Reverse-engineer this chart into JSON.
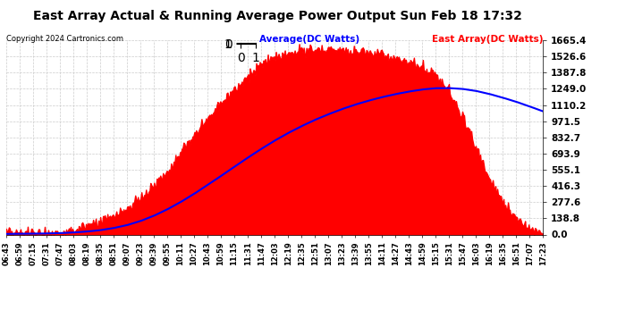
{
  "title": "East Array Actual & Running Average Power Output Sun Feb 18 17:32",
  "copyright": "Copyright 2024 Cartronics.com",
  "legend_avg": "Average(DC Watts)",
  "legend_east": "East Array(DC Watts)",
  "ymax": 1665.4,
  "ymin": 0.0,
  "yticks": [
    0.0,
    138.8,
    277.6,
    416.3,
    555.1,
    693.9,
    832.7,
    971.5,
    1110.2,
    1249.0,
    1387.8,
    1526.6,
    1665.4
  ],
  "x_labels": [
    "06:43",
    "06:59",
    "07:15",
    "07:31",
    "07:47",
    "08:03",
    "08:19",
    "08:35",
    "08:51",
    "09:07",
    "09:23",
    "09:39",
    "09:55",
    "10:11",
    "10:27",
    "10:43",
    "10:59",
    "11:15",
    "11:31",
    "11:47",
    "12:03",
    "12:19",
    "12:35",
    "12:51",
    "13:07",
    "13:23",
    "13:39",
    "13:55",
    "14:11",
    "14:27",
    "14:43",
    "14:59",
    "15:15",
    "15:31",
    "15:47",
    "16:03",
    "16:19",
    "16:35",
    "16:51",
    "17:07",
    "17:23"
  ],
  "background_color": "#ffffff",
  "fill_color": "#ff0000",
  "line_color": "#0000ff",
  "grid_color": "#cccccc",
  "title_color": "#000000",
  "legend_avg_color": "#0000ff",
  "legend_east_color": "#ff0000",
  "east_profile": [
    5,
    8,
    12,
    18,
    25,
    40,
    65,
    100,
    150,
    220,
    310,
    420,
    550,
    700,
    850,
    1000,
    1130,
    1250,
    1360,
    1450,
    1520,
    1560,
    1580,
    1590,
    1590,
    1585,
    1575,
    1560,
    1540,
    1510,
    1480,
    1440,
    1360,
    1220,
    1020,
    750,
    480,
    280,
    140,
    60,
    15
  ],
  "avg_profile": [
    5,
    6,
    7,
    9,
    12,
    17,
    25,
    37,
    55,
    80,
    115,
    160,
    215,
    278,
    348,
    424,
    501,
    580,
    658,
    733,
    804,
    869,
    928,
    982,
    1030,
    1074,
    1113,
    1147,
    1177,
    1203,
    1225,
    1243,
    1254,
    1255,
    1248,
    1231,
    1205,
    1173,
    1138,
    1098,
    1056
  ]
}
